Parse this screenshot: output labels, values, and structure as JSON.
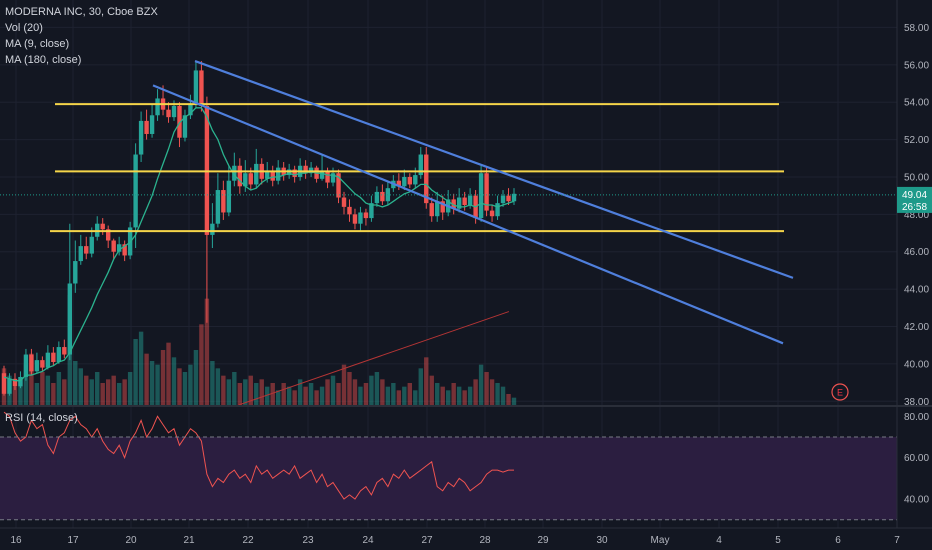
{
  "legend": {
    "title": "MODERNA INC, 30, Cboe BZX",
    "vol": "Vol (20)",
    "ma9": "MA (9, close)",
    "ma180": "MA (180, close)"
  },
  "rsi_legend": "RSI (14, close)",
  "price_badge": {
    "price": "49.04",
    "countdown": "26:58"
  },
  "earnings_marker": "E",
  "colors": {
    "background": "#131722",
    "up": "#26a69a",
    "down": "#ef5350",
    "trend_line": "#4f7fdc",
    "support_line": "#f5d54a",
    "ma9": "#2bb38f",
    "ma180": "#b53535",
    "rsi_line": "#ef5350",
    "rsi_band": "#2b1e40",
    "price_badge": "#1e9a8a"
  },
  "chart_data": {
    "type": "candlestick",
    "symbol": "MODERNA INC, 30, Cboe BZX",
    "x_tick_labels": [
      "16",
      "17",
      "20",
      "21",
      "22",
      "23",
      "24",
      "27",
      "28",
      "29",
      "30",
      "May",
      "4",
      "5",
      "6",
      "7"
    ],
    "y_tick_labels": [
      "38.00",
      "40.00",
      "42.00",
      "44.00",
      "46.00",
      "48.00",
      "50.00",
      "52.00",
      "54.00",
      "56.00",
      "58.00"
    ],
    "ylim": [
      37.8,
      59.2
    ],
    "rsi_tick_labels": [
      "40.00",
      "60.00",
      "80.00"
    ],
    "rsi_ylim": [
      26,
      84
    ],
    "rsi_band": [
      30,
      70
    ],
    "last_price": 49.04,
    "horizontal_levels": [
      53.9,
      50.3,
      47.1
    ],
    "trend_lines": [
      {
        "from": [
          21.0,
          56.2
        ],
        "to": [
          5.25,
          44.6
        ]
      },
      {
        "from": [
          20.4,
          54.9
        ],
        "to": [
          5.1,
          41.1
        ]
      }
    ],
    "candles": [
      [
        39.5,
        38.4,
        39.9,
        38.3
      ],
      [
        38.4,
        39.2,
        39.5,
        38.3
      ],
      [
        39.2,
        38.8,
        39.5,
        38.6
      ],
      [
        38.8,
        39.3,
        39.6,
        38.7
      ],
      [
        39.3,
        40.5,
        40.8,
        39.1
      ],
      [
        40.5,
        39.6,
        40.8,
        39.4
      ],
      [
        39.6,
        40.2,
        40.6,
        39.5
      ],
      [
        40.2,
        39.8,
        40.4,
        39.6
      ],
      [
        39.8,
        40.6,
        41.0,
        39.7
      ],
      [
        40.6,
        40.1,
        40.9,
        39.9
      ],
      [
        40.1,
        40.9,
        41.2,
        40.0
      ],
      [
        40.9,
        40.5,
        41.3,
        40.3
      ],
      [
        40.5,
        44.3,
        47.5,
        40.2
      ],
      [
        44.3,
        45.5,
        46.6,
        43.8
      ],
      [
        45.5,
        46.3,
        46.9,
        45.3
      ],
      [
        46.3,
        45.9,
        46.8,
        45.6
      ],
      [
        45.9,
        46.8,
        47.3,
        45.7
      ],
      [
        46.8,
        47.5,
        47.9,
        46.6
      ],
      [
        47.5,
        47.2,
        47.8,
        46.9
      ],
      [
        47.2,
        46.6,
        47.4,
        46.2
      ],
      [
        46.6,
        46.0,
        46.7,
        45.6
      ],
      [
        46.0,
        46.4,
        46.8,
        45.8
      ],
      [
        46.4,
        45.8,
        46.6,
        45.5
      ],
      [
        45.8,
        47.3,
        47.6,
        45.6
      ],
      [
        47.3,
        51.2,
        51.8,
        46.2
      ],
      [
        51.2,
        53.0,
        53.5,
        50.8
      ],
      [
        53.0,
        52.3,
        53.6,
        52.0
      ],
      [
        52.3,
        53.3,
        53.9,
        52.1
      ],
      [
        53.3,
        54.2,
        54.7,
        53.0
      ],
      [
        54.2,
        53.6,
        54.9,
        53.3
      ],
      [
        53.6,
        53.2,
        54.0,
        52.9
      ],
      [
        53.2,
        53.8,
        54.1,
        53.0
      ],
      [
        53.8,
        52.1,
        54.0,
        51.6
      ],
      [
        52.1,
        53.3,
        53.6,
        51.9
      ],
      [
        53.3,
        53.9,
        54.4,
        53.1
      ],
      [
        53.9,
        55.7,
        56.2,
        53.7
      ],
      [
        55.7,
        53.8,
        56.2,
        53.5
      ],
      [
        53.8,
        46.9,
        54.3,
        42.2
      ],
      [
        46.9,
        47.5,
        48.6,
        46.2
      ],
      [
        47.5,
        49.3,
        50.2,
        47.3
      ],
      [
        49.3,
        48.1,
        49.8,
        47.7
      ],
      [
        48.1,
        49.8,
        50.6,
        47.9
      ],
      [
        49.8,
        50.6,
        51.3,
        49.5
      ],
      [
        50.6,
        49.5,
        51.0,
        49.1
      ],
      [
        49.5,
        50.2,
        50.9,
        49.2
      ],
      [
        50.2,
        49.6,
        50.5,
        49.3
      ],
      [
        49.6,
        50.7,
        51.5,
        49.4
      ],
      [
        50.7,
        49.9,
        51.0,
        49.6
      ],
      [
        49.9,
        50.3,
        50.8,
        49.7
      ],
      [
        50.3,
        49.8,
        50.6,
        49.5
      ],
      [
        49.8,
        50.5,
        50.9,
        49.6
      ],
      [
        50.5,
        50.1,
        50.8,
        49.8
      ],
      [
        50.1,
        50.4,
        50.7,
        49.9
      ],
      [
        50.4,
        50.0,
        50.6,
        49.7
      ],
      [
        50.0,
        50.6,
        51.0,
        49.8
      ],
      [
        50.6,
        50.2,
        50.9,
        49.9
      ],
      [
        50.2,
        50.5,
        50.8,
        50.0
      ],
      [
        50.5,
        49.9,
        50.6,
        49.7
      ],
      [
        49.9,
        50.3,
        51.2,
        49.8
      ],
      [
        50.3,
        49.7,
        50.5,
        49.4
      ],
      [
        49.7,
        50.2,
        50.5,
        49.5
      ],
      [
        50.2,
        48.9,
        50.4,
        48.6
      ],
      [
        48.9,
        48.4,
        49.2,
        48.0
      ],
      [
        48.4,
        48.0,
        48.8,
        47.6
      ],
      [
        48.0,
        47.5,
        48.3,
        47.2
      ],
      [
        47.5,
        48.1,
        48.4,
        47.1
      ],
      [
        48.1,
        47.8,
        48.3,
        47.4
      ],
      [
        47.8,
        48.6,
        49.0,
        47.6
      ],
      [
        48.6,
        49.2,
        49.5,
        48.4
      ],
      [
        49.2,
        48.7,
        49.6,
        48.5
      ],
      [
        48.7,
        49.4,
        49.8,
        48.5
      ],
      [
        49.4,
        49.8,
        50.1,
        49.2
      ],
      [
        49.8,
        49.5,
        50.2,
        49.3
      ],
      [
        49.5,
        50.0,
        50.4,
        49.3
      ],
      [
        50.0,
        49.6,
        50.2,
        49.4
      ],
      [
        49.6,
        50.1,
        50.5,
        49.4
      ],
      [
        50.1,
        51.2,
        51.6,
        49.9
      ],
      [
        51.2,
        48.6,
        51.6,
        48.3
      ],
      [
        48.6,
        47.9,
        48.9,
        47.6
      ],
      [
        47.9,
        48.7,
        49.2,
        47.6
      ],
      [
        48.7,
        48.1,
        49.0,
        47.7
      ],
      [
        48.1,
        48.8,
        49.3,
        47.9
      ],
      [
        48.8,
        48.3,
        49.1,
        48.0
      ],
      [
        48.3,
        48.9,
        49.4,
        48.1
      ],
      [
        48.9,
        48.5,
        49.2,
        48.2
      ],
      [
        48.5,
        49.0,
        49.4,
        48.3
      ],
      [
        49.0,
        47.8,
        49.3,
        47.5
      ],
      [
        47.8,
        50.2,
        50.6,
        47.6
      ],
      [
        50.2,
        48.2,
        50.5,
        47.9
      ],
      [
        48.2,
        47.9,
        48.5,
        47.6
      ],
      [
        47.9,
        48.6,
        49.0,
        47.7
      ],
      [
        48.6,
        49.0,
        49.3,
        48.4
      ],
      [
        49.0,
        48.7,
        49.4,
        48.5
      ],
      [
        48.7,
        49.1,
        49.4,
        48.5
      ]
    ],
    "volume": [
      20,
      16,
      10,
      14,
      22,
      28,
      12,
      18,
      16,
      12,
      18,
      14,
      60,
      24,
      20,
      16,
      14,
      18,
      12,
      14,
      16,
      12,
      14,
      18,
      36,
      40,
      28,
      24,
      22,
      30,
      34,
      26,
      20,
      18,
      22,
      30,
      44,
      58,
      24,
      20,
      16,
      14,
      18,
      12,
      14,
      16,
      12,
      14,
      10,
      12,
      8,
      12,
      10,
      8,
      14,
      10,
      12,
      8,
      10,
      14,
      16,
      12,
      22,
      18,
      14,
      10,
      12,
      16,
      18,
      14,
      10,
      12,
      8,
      10,
      12,
      8,
      20,
      26,
      16,
      12,
      10,
      8,
      12,
      10,
      8,
      10,
      14,
      22,
      18,
      14,
      12,
      10,
      6,
      4
    ],
    "rsi": [
      82,
      80,
      72,
      68,
      70,
      78,
      74,
      76,
      66,
      62,
      70,
      72,
      78,
      80,
      76,
      74,
      70,
      74,
      68,
      64,
      62,
      66,
      60,
      68,
      72,
      78,
      70,
      74,
      80,
      76,
      72,
      74,
      66,
      70,
      74,
      72,
      68,
      52,
      46,
      50,
      48,
      52,
      54,
      50,
      52,
      48,
      56,
      52,
      54,
      50,
      52,
      54,
      52,
      56,
      50,
      52,
      54,
      48,
      52,
      46,
      48,
      44,
      40,
      42,
      40,
      44,
      46,
      42,
      48,
      50,
      46,
      52,
      50,
      54,
      50,
      52,
      54,
      56,
      58,
      46,
      44,
      48,
      46,
      50,
      48,
      44,
      46,
      48,
      52,
      54,
      54,
      53,
      54,
      54
    ],
    "ma9": [
      39.3,
      39.2,
      39.1,
      39.1,
      39.4,
      39.4,
      39.5,
      39.6,
      39.8,
      39.9,
      40.1,
      40.2,
      40.6,
      41.2,
      41.8,
      42.4,
      43.0,
      43.7,
      44.3,
      44.9,
      45.6,
      46.1,
      46.3,
      46.5,
      46.9,
      47.6,
      48.3,
      49.0,
      49.9,
      50.7,
      51.5,
      52.4,
      52.9,
      53.2,
      53.4,
      53.7,
      53.7,
      53.2,
      52.5,
      52.0,
      51.2,
      50.6,
      50.1,
      49.8,
      49.5,
      49.3,
      49.4,
      49.7,
      49.9,
      50.0,
      50.0,
      50.1,
      50.2,
      50.1,
      50.2,
      50.2,
      50.3,
      50.2,
      50.2,
      50.1,
      50.1,
      50.0,
      49.7,
      49.4,
      49.1,
      48.9,
      48.6,
      48.5,
      48.5,
      48.4,
      48.5,
      48.7,
      48.9,
      49.1,
      49.2,
      49.4,
      49.6,
      49.6,
      49.3,
      49.1,
      48.9,
      48.7,
      48.5,
      48.4,
      48.4,
      48.5,
      48.4,
      48.6,
      48.5,
      48.5,
      48.4,
      48.5,
      48.6,
      48.7
    ],
    "ma180": {
      "from": [
        0.46,
        37.8
      ],
      "to": [
        0.99,
        42.8
      ]
    }
  }
}
